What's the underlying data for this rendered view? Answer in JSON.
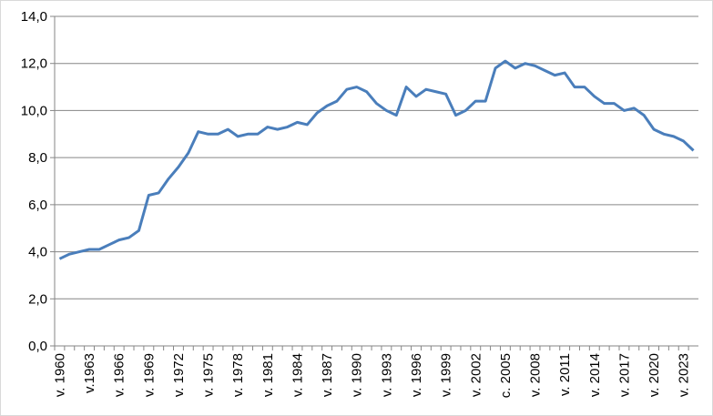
{
  "chart_data": {
    "type": "line",
    "categories": [
      "v. 1960",
      null,
      null,
      "v.1963",
      null,
      null,
      "v. 1966",
      null,
      null,
      "v. 1969",
      null,
      null,
      "v. 1972",
      null,
      null,
      "v. 1975",
      null,
      null,
      "v. 1978",
      null,
      null,
      "v. 1981",
      null,
      null,
      "v. 1984",
      null,
      null,
      "v. 1987",
      null,
      null,
      "v. 1990",
      null,
      null,
      "v. 1993",
      null,
      null,
      "v. 1996",
      null,
      null,
      "v. 1999",
      null,
      null,
      "v. 2002",
      null,
      null,
      "c. 2005",
      null,
      null,
      "v. 2008",
      null,
      null,
      "v. 2011",
      null,
      null,
      "v. 2014",
      null,
      null,
      "v. 2017",
      null,
      null,
      "v. 2020",
      null,
      null,
      "v. 2023",
      null
    ],
    "values": [
      3.7,
      3.9,
      4.0,
      4.1,
      4.1,
      4.3,
      4.5,
      4.6,
      4.9,
      6.4,
      6.5,
      7.1,
      7.6,
      8.2,
      9.1,
      9.0,
      9.0,
      9.2,
      8.9,
      9.0,
      9.0,
      9.3,
      9.2,
      9.3,
      9.5,
      9.4,
      9.9,
      10.2,
      10.4,
      10.9,
      11.0,
      10.8,
      10.3,
      10.0,
      9.8,
      11.0,
      10.6,
      10.9,
      10.8,
      10.7,
      9.8,
      10.0,
      10.4,
      10.4,
      11.8,
      12.1,
      11.8,
      12.0,
      11.9,
      11.7,
      11.5,
      11.6,
      11.0,
      11.0,
      10.6,
      10.3,
      10.3,
      10.0,
      10.1,
      9.8,
      9.2,
      9.0,
      8.9,
      8.7,
      8.3
    ],
    "color": "#4a7ebb",
    "ylim": [
      0,
      14
    ],
    "yticks": [
      {
        "value": 0,
        "label": "0,0"
      },
      {
        "value": 2,
        "label": "2,0"
      },
      {
        "value": 4,
        "label": "4,0"
      },
      {
        "value": 6,
        "label": "6,0"
      },
      {
        "value": 8,
        "label": "8,0"
      },
      {
        "value": 10,
        "label": "10,0"
      },
      {
        "value": 12,
        "label": "12,0"
      },
      {
        "value": 14,
        "label": "14,0"
      }
    ],
    "grid": true
  }
}
